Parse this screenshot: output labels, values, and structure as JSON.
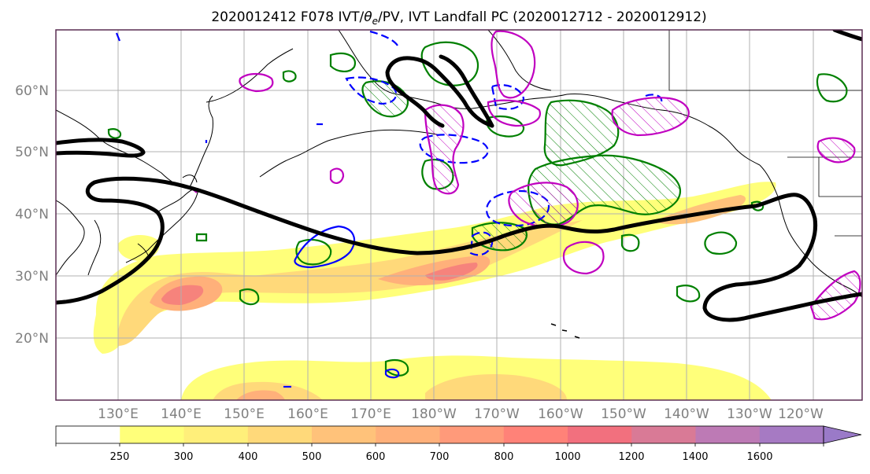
{
  "title": {
    "prefix": "2020012412 F078 IVT/",
    "theta": "θ",
    "theta_sub": "e",
    "suffix": "/PV, IVT Landfall PC (2020012712 - 2020012912)"
  },
  "map": {
    "lat_ticks": [
      "60°N",
      "50°N",
      "40°N",
      "30°N",
      "20°N"
    ],
    "lon_ticks": [
      "130°E",
      "140°E",
      "150°E",
      "160°E",
      "170°E",
      "180°W",
      "170°W",
      "160°W",
      "150°W",
      "140°W",
      "130°W",
      "120°W"
    ],
    "grid": true,
    "frame_color": "#5a2d52"
  },
  "colorbar": {
    "levels": [
      "250",
      "300",
      "400",
      "500",
      "600",
      "700",
      "800",
      "1000",
      "1200",
      "1400",
      "1600"
    ],
    "colors": [
      "#ffff7a",
      "#ffef7a",
      "#ffd97a",
      "#ffc27a",
      "#ffb07a",
      "#ff9a7a",
      "#ff8278",
      "#f2707e",
      "#d97a96",
      "#bd7ab5",
      "#a67ac3",
      "#9a7ac8"
    ],
    "extend": "max"
  },
  "overlay_colors": {
    "jet_pv": "#000000",
    "ivt_landfall_pc": "#008000",
    "thetae_neg": "#0000ff",
    "pv_pos": "#c000c0"
  }
}
